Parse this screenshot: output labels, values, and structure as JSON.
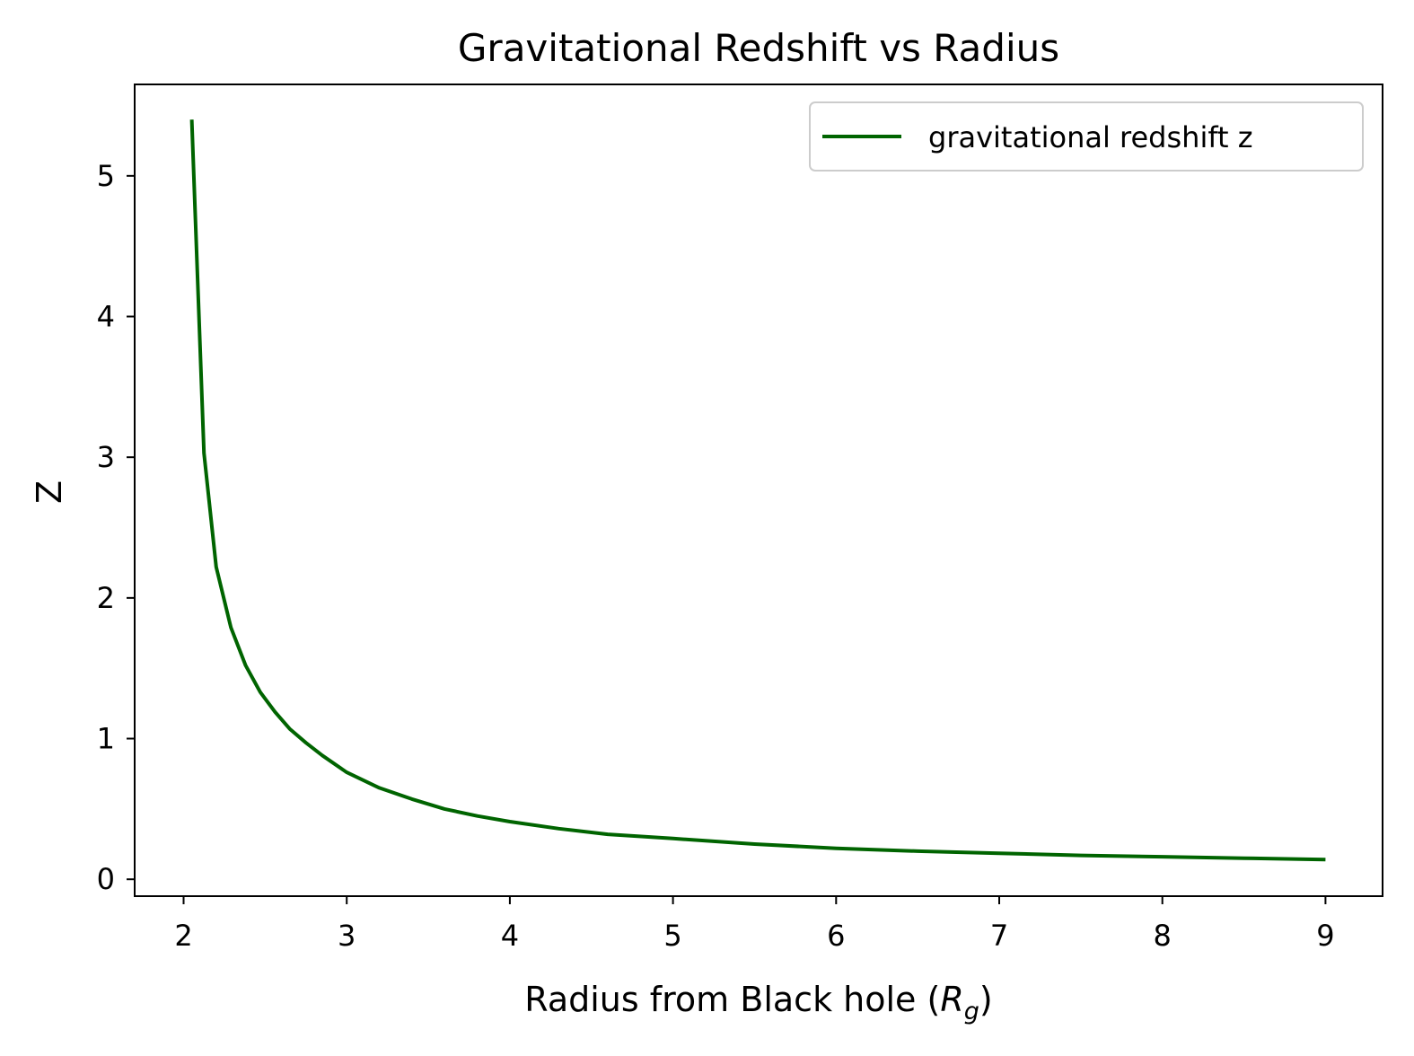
{
  "chart_data": {
    "type": "line",
    "title": "Gravitational Redshift vs Radius",
    "xlabel_prefix": "Radius from Black hole (",
    "xlabel_symbol": "R",
    "xlabel_subscript": "g",
    "xlabel_suffix": ")",
    "ylabel": "Z",
    "xlim": [
      1.7,
      9.35
    ],
    "ylim": [
      -0.12,
      5.65
    ],
    "xticks": [
      2,
      3,
      4,
      5,
      6,
      7,
      8,
      9
    ],
    "yticks": [
      0,
      1,
      2,
      3,
      4,
      5
    ],
    "grid": false,
    "legend_position": "top-right",
    "colors": {
      "series": "#006400",
      "axes": "#000000",
      "legend_border": "#cccccc"
    },
    "series": [
      {
        "name": "gravitational redshift z",
        "x": [
          2.05,
          2.125,
          2.2,
          2.29,
          2.38,
          2.47,
          2.56,
          2.65,
          2.75,
          2.85,
          3.0,
          3.2,
          3.4,
          3.6,
          3.8,
          4.0,
          4.3,
          4.6,
          5.0,
          5.5,
          6.0,
          6.5,
          7.0,
          7.5,
          8.0,
          8.5,
          9.0
        ],
        "y": [
          5.4,
          3.03,
          2.22,
          1.79,
          1.52,
          1.33,
          1.19,
          1.07,
          0.97,
          0.88,
          0.76,
          0.65,
          0.57,
          0.5,
          0.45,
          0.41,
          0.36,
          0.32,
          0.29,
          0.25,
          0.22,
          0.2,
          0.185,
          0.17,
          0.16,
          0.15,
          0.14
        ]
      }
    ]
  }
}
